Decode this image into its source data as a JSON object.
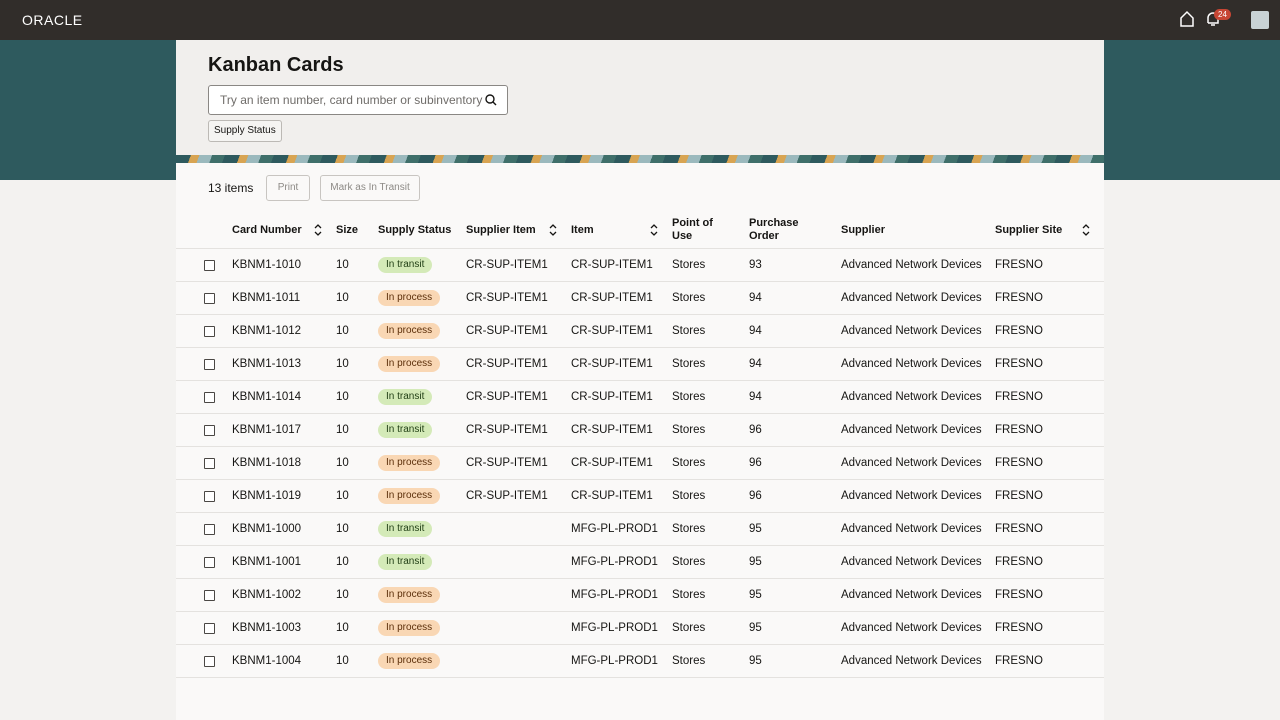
{
  "header": {
    "brand": "ORACLE",
    "notification_count": 24
  },
  "page": {
    "title": "Kanban Cards",
    "search_placeholder": "Try an item number, card number or subinventory",
    "filter_chip": "Supply Status"
  },
  "toolbar": {
    "count": "13 items",
    "buttons": [
      "Print",
      "Mark as In Transit"
    ]
  },
  "table": {
    "columns": [
      "Card Number",
      "Size",
      "Supply Status",
      "Supplier Item",
      "Item",
      "Point of Use",
      "Purchase Order",
      "Supplier",
      "Supplier Site"
    ],
    "sortable": [
      true,
      false,
      false,
      true,
      true,
      false,
      false,
      false,
      true
    ],
    "rows": [
      [
        "KBNM1-1010",
        10,
        "In transit",
        "CR-SUP-ITEM1",
        "CR-SUP-ITEM1",
        "Stores",
        93,
        "Advanced Network Devices",
        "FRESNO"
      ],
      [
        "KBNM1-1011",
        10,
        "In process",
        "CR-SUP-ITEM1",
        "CR-SUP-ITEM1",
        "Stores",
        94,
        "Advanced Network Devices",
        "FRESNO"
      ],
      [
        "KBNM1-1012",
        10,
        "In process",
        "CR-SUP-ITEM1",
        "CR-SUP-ITEM1",
        "Stores",
        94,
        "Advanced Network Devices",
        "FRESNO"
      ],
      [
        "KBNM1-1013",
        10,
        "In process",
        "CR-SUP-ITEM1",
        "CR-SUP-ITEM1",
        "Stores",
        94,
        "Advanced Network Devices",
        "FRESNO"
      ],
      [
        "KBNM1-1014",
        10,
        "In transit",
        "CR-SUP-ITEM1",
        "CR-SUP-ITEM1",
        "Stores",
        94,
        "Advanced Network Devices",
        "FRESNO"
      ],
      [
        "KBNM1-1017",
        10,
        "In transit",
        "CR-SUP-ITEM1",
        "CR-SUP-ITEM1",
        "Stores",
        96,
        "Advanced Network Devices",
        "FRESNO"
      ],
      [
        "KBNM1-1018",
        10,
        "In process",
        "CR-SUP-ITEM1",
        "CR-SUP-ITEM1",
        "Stores",
        96,
        "Advanced Network Devices",
        "FRESNO"
      ],
      [
        "KBNM1-1019",
        10,
        "In process",
        "CR-SUP-ITEM1",
        "CR-SUP-ITEM1",
        "Stores",
        96,
        "Advanced Network Devices",
        "FRESNO"
      ],
      [
        "KBNM1-1000",
        10,
        "In transit",
        null,
        "MFG-PL-PROD1",
        "Stores",
        95,
        "Advanced Network Devices",
        "FRESNO"
      ],
      [
        "KBNM1-1001",
        10,
        "In transit",
        null,
        "MFG-PL-PROD1",
        "Stores",
        95,
        "Advanced Network Devices",
        "FRESNO"
      ],
      [
        "KBNM1-1002",
        10,
        "In process",
        null,
        "MFG-PL-PROD1",
        "Stores",
        95,
        "Advanced Network Devices",
        "FRESNO"
      ],
      [
        "KBNM1-1003",
        10,
        "In process",
        null,
        "MFG-PL-PROD1",
        "Stores",
        95,
        "Advanced Network Devices",
        "FRESNO"
      ],
      [
        "KBNM1-1004",
        10,
        "In process",
        null,
        "MFG-PL-PROD1",
        "Stores",
        95,
        "Advanced Network Devices",
        "FRESNO"
      ]
    ]
  }
}
